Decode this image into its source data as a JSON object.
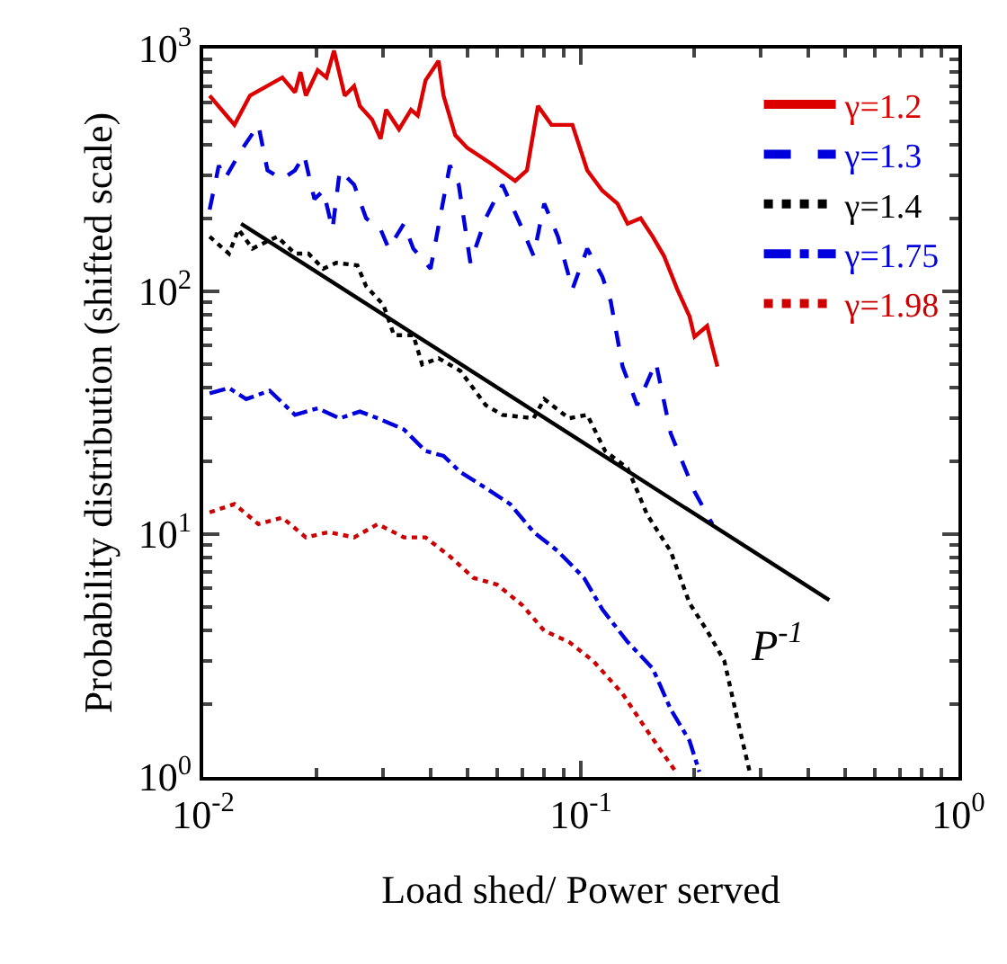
{
  "chart_data": {
    "type": "line",
    "xlabel": "Load shed/ Power served",
    "ylabel": "Probability distribution (shifted scale)",
    "log": "xy",
    "xlim": [
      0.01,
      1
    ],
    "ylim": [
      1,
      1000
    ],
    "xticks": [
      {
        "value": 0.01,
        "label": "10$^{-2}$"
      },
      {
        "value": 0.1,
        "label": "10$^{-1}$"
      },
      {
        "value": 1,
        "label": "10$^{0}$"
      }
    ],
    "yticks": [
      {
        "value": 1,
        "label": "10$^{0}$"
      },
      {
        "value": 10,
        "label": "10$^{1}$"
      },
      {
        "value": 100,
        "label": "10$^{2}$"
      },
      {
        "value": 1000,
        "label": "10$^{3}$"
      }
    ],
    "grid": false,
    "legend": "top right",
    "marker": "none",
    "annotations": [
      "P$^{-1}$"
    ],
    "series": [
      {
        "name": "γ=1.2",
        "color": "#dd0000",
        "line_style": "solid",
        "x": [
          0.0104,
          0.0121,
          0.0133,
          0.0162,
          0.0175,
          0.0181,
          0.0187,
          0.0201,
          0.0212,
          0.0222,
          0.0237,
          0.0251,
          0.026,
          0.028,
          0.0295,
          0.0305,
          0.033,
          0.0355,
          0.037,
          0.0388,
          0.042,
          0.0433,
          0.0465,
          0.05,
          0.058,
          0.067,
          0.072,
          0.077,
          0.0836,
          0.095,
          0.104,
          0.114,
          0.125,
          0.133,
          0.144,
          0.155,
          0.166,
          0.18,
          0.194,
          0.2,
          0.216,
          0.223,
          0.23
        ],
        "values": [
          640,
          485,
          640,
          760,
          660,
          800,
          640,
          815,
          760,
          980,
          640,
          700,
          580,
          510,
          425,
          560,
          465,
          560,
          530,
          740,
          890,
          640,
          440,
          390,
          335,
          285,
          315,
          580,
          485,
          485,
          315,
          260,
          230,
          190,
          200,
          168,
          140,
          102,
          79,
          65,
          72,
          59,
          49
        ]
      },
      {
        "name": "γ=1.3",
        "color": "#0000dd",
        "line_style": "dashed",
        "x": [
          0.0104,
          0.011,
          0.0114,
          0.0126,
          0.014,
          0.0148,
          0.0162,
          0.0175,
          0.0185,
          0.0197,
          0.0208,
          0.022,
          0.023,
          0.0251,
          0.027,
          0.0295,
          0.031,
          0.034,
          0.036,
          0.04,
          0.045,
          0.0475,
          0.051,
          0.056,
          0.062,
          0.069,
          0.075,
          0.08,
          0.087,
          0.095,
          0.104,
          0.114,
          0.12,
          0.129,
          0.141,
          0.158,
          0.173,
          0.183,
          0.2,
          0.223
        ],
        "values": [
          217,
          330,
          290,
          380,
          485,
          315,
          290,
          315,
          365,
          240,
          260,
          180,
          315,
          275,
          200,
          180,
          150,
          190,
          150,
          124,
          330,
          275,
          131,
          200,
          275,
          190,
          140,
          230,
          168,
          102,
          150,
          115,
          91,
          49,
          34,
          51,
          26,
          21,
          15,
          11
        ]
      },
      {
        "name": "γ=1.4",
        "color": "#000000",
        "line_style": "dotted",
        "x": [
          0.0104,
          0.0117,
          0.0124,
          0.0135,
          0.0157,
          0.0175,
          0.019,
          0.0208,
          0.0225,
          0.0256,
          0.027,
          0.03,
          0.032,
          0.036,
          0.038,
          0.042,
          0.048,
          0.056,
          0.062,
          0.075,
          0.08,
          0.093,
          0.104,
          0.116,
          0.133,
          0.15,
          0.173,
          0.194,
          0.216,
          0.24,
          0.26,
          0.28
        ],
        "values": [
          168,
          143,
          180,
          150,
          168,
          143,
          143,
          124,
          131,
          128,
          105,
          88,
          66,
          66,
          50,
          53,
          47,
          34,
          31,
          30,
          36,
          30,
          31,
          22,
          18.7,
          12,
          8.5,
          5.2,
          4,
          3,
          1.72,
          1.05
        ]
      },
      {
        "name": "γ=1.75",
        "color": "#0000dd",
        "line_style": "dashdot",
        "x": [
          0.0104,
          0.0117,
          0.013,
          0.015,
          0.0175,
          0.0201,
          0.023,
          0.026,
          0.029,
          0.034,
          0.0388,
          0.0433,
          0.048,
          0.056,
          0.065,
          0.075,
          0.087,
          0.102,
          0.114,
          0.133,
          0.155,
          0.173,
          0.194,
          0.206
        ],
        "values": [
          38,
          40,
          36,
          39,
          31,
          33,
          30,
          32,
          30,
          27,
          22,
          21,
          18,
          15.5,
          13.3,
          10.2,
          8.5,
          6.6,
          4.9,
          3.6,
          2.8,
          1.9,
          1.41,
          1.05
        ]
      },
      {
        "name": "γ=1.98",
        "color": "#cc0000",
        "line_style": "dotted",
        "x": [
          0.0104,
          0.0121,
          0.014,
          0.0162,
          0.0187,
          0.0215,
          0.0251,
          0.029,
          0.034,
          0.0388,
          0.045,
          0.052,
          0.06,
          0.07,
          0.08,
          0.093,
          0.108,
          0.129,
          0.144,
          0.161,
          0.177
        ],
        "values": [
          12.3,
          13.3,
          11,
          11.7,
          9.7,
          10.2,
          9.7,
          11,
          9.7,
          9.7,
          8.1,
          6.6,
          6.2,
          5.1,
          4,
          3.6,
          3,
          2.2,
          1.7,
          1.32,
          1.07
        ]
      },
      {
        "color": "#000000",
        "line_style": "solid",
        "x": [
          0.0126,
          0.455
        ],
        "values": [
          190,
          5.35
        ]
      }
    ]
  }
}
